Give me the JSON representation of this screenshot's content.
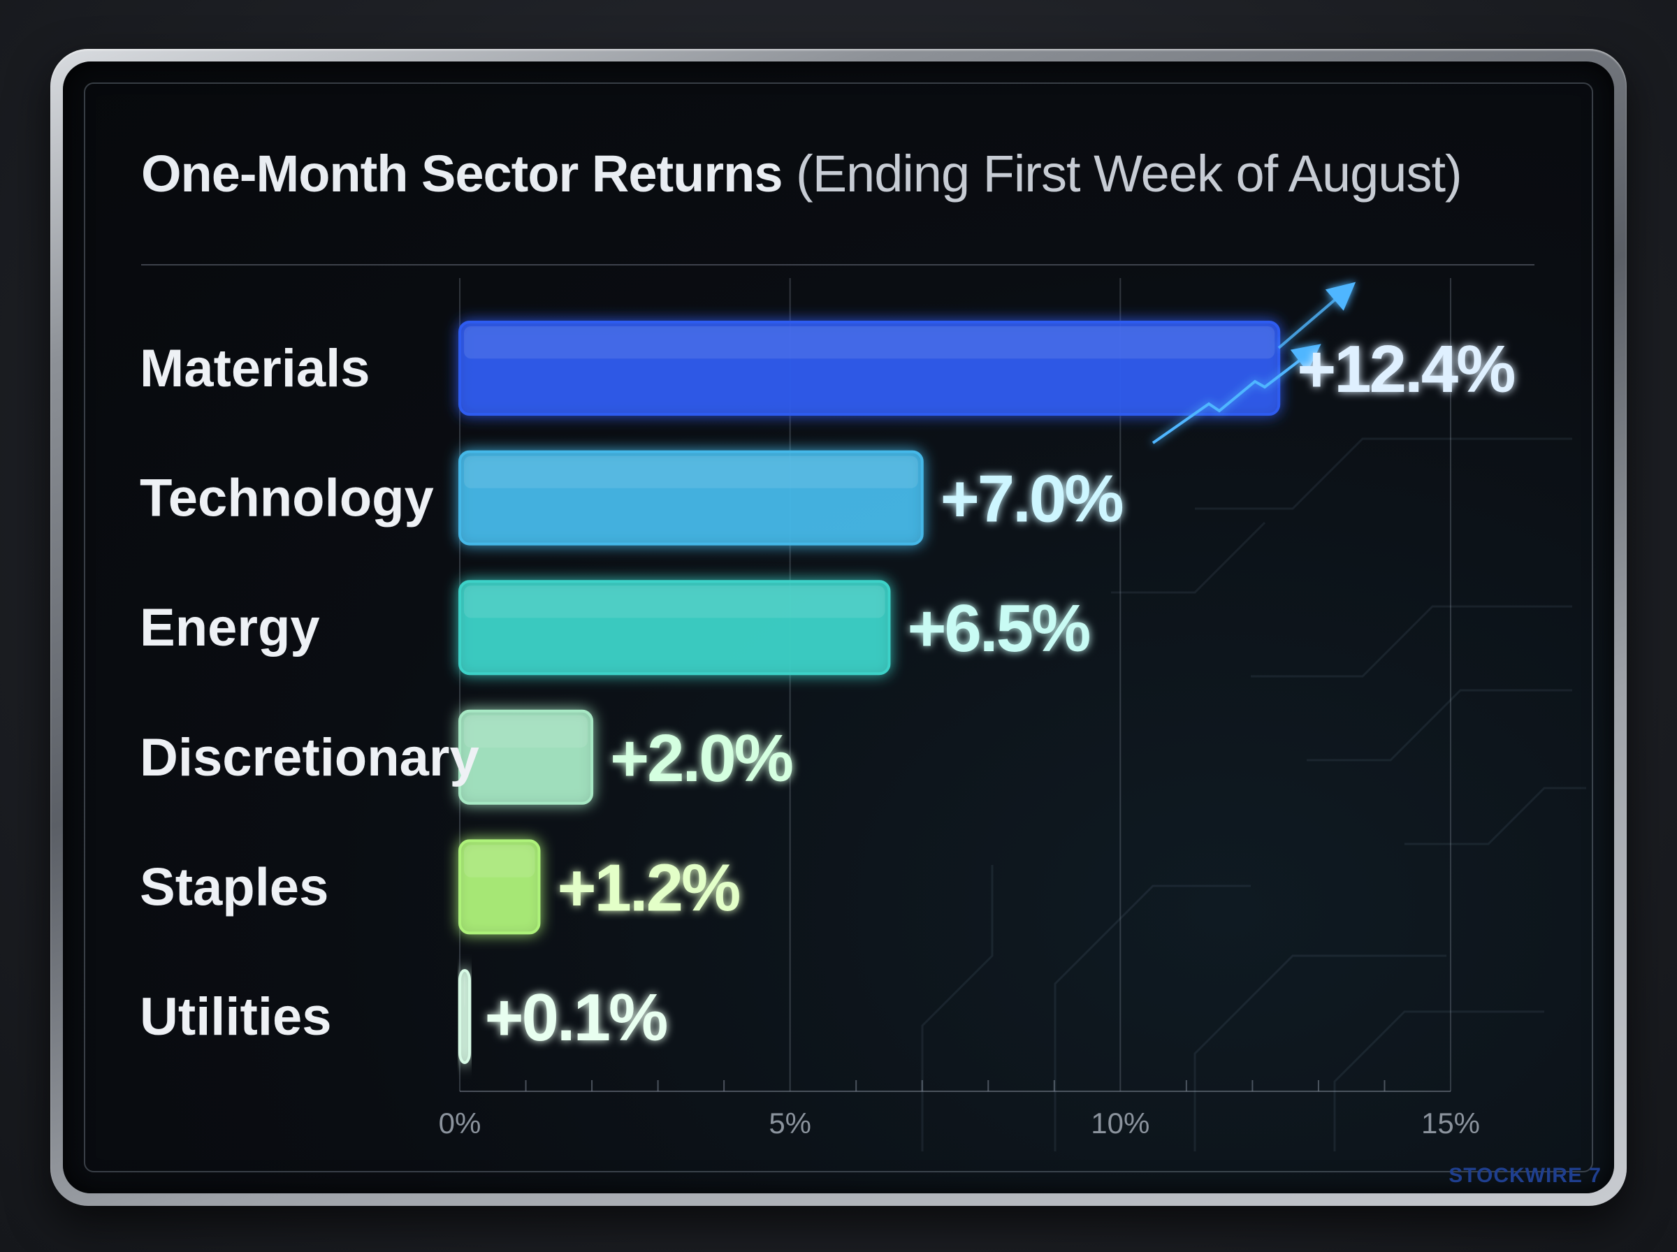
{
  "chart_data": {
    "type": "bar",
    "orientation": "horizontal",
    "title": "One-Month Sector Returns",
    "subtitle": "(Ending First Week of August)",
    "categories": [
      "Materials",
      "Technology",
      "Energy",
      "Discretionary",
      "Staples",
      "Utilities"
    ],
    "values": [
      12.4,
      7.0,
      6.5,
      2.0,
      1.2,
      0.1
    ],
    "data_labels": [
      "+12.4%",
      "+7.0%",
      "+6.5%",
      "+2.0%",
      "+1.2%",
      "+0.1%"
    ],
    "xlim": [
      0,
      15
    ],
    "x_ticks": [
      0,
      5,
      10,
      15
    ],
    "x_tick_labels": [
      "0%",
      "5%",
      "10%",
      "15%"
    ],
    "grid": true,
    "xlabel": "",
    "ylabel": "",
    "bar_colors": [
      "#2f5cf0",
      "#45b8e8",
      "#3ed2c8",
      "#a7e8c4",
      "#aef27a",
      "#d8fbe6"
    ],
    "label_colors": [
      "#dff0ff",
      "#cdf6ff",
      "#c8fbf4",
      "#d4ffe0",
      "#e3ffc8",
      "#e8fff0"
    ]
  },
  "watermark": "STOCKWIRE 7"
}
